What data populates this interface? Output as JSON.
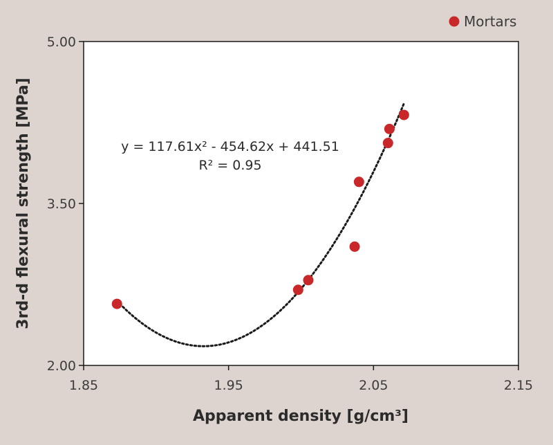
{
  "chart_data": {
    "type": "scatter",
    "title": "",
    "xlabel": "Apparent density [g/cm³]",
    "ylabel": "3rd-d flexural strength [MPa]",
    "xlim": [
      1.85,
      2.15
    ],
    "ylim": [
      2.0,
      5.0
    ],
    "x_ticks": [
      "1.85",
      "1.95",
      "2.05",
      "2.15"
    ],
    "y_ticks": [
      "2.00",
      "3.50",
      "5.00"
    ],
    "grid": false,
    "legend_position": "top-right",
    "series": [
      {
        "name": "Mortars",
        "color": "#c8282a",
        "points": [
          {
            "x": 1.873,
            "y": 2.57
          },
          {
            "x": 1.998,
            "y": 2.7
          },
          {
            "x": 2.005,
            "y": 2.79
          },
          {
            "x": 2.037,
            "y": 3.1
          },
          {
            "x": 2.04,
            "y": 3.7
          },
          {
            "x": 2.06,
            "y": 4.06
          },
          {
            "x": 2.061,
            "y": 4.19
          },
          {
            "x": 2.071,
            "y": 4.32
          }
        ]
      }
    ],
    "trendline": {
      "type": "polynomial",
      "coefficients": [
        117.61,
        -454.62,
        441.51
      ],
      "x_range": [
        1.873,
        2.071
      ],
      "style": "dotted",
      "color": "#1a1a1a",
      "equation": "y = 117.61x² - 454.62x + 441.51",
      "r_squared": "R² = 0.95"
    }
  }
}
